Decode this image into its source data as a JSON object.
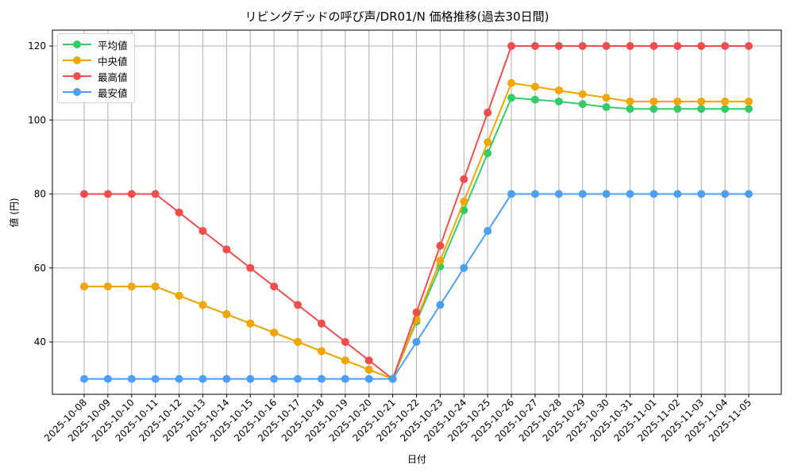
{
  "chart_data": {
    "type": "line",
    "title": "リビングデッドの呼び声/DR01/N 価格推移(過去30日間)",
    "xlabel": "日付",
    "ylabel": "値 (円)",
    "ylim": [
      25,
      125
    ],
    "yticks": [
      40,
      60,
      80,
      100,
      120
    ],
    "grid": true,
    "legend_position": "upper left",
    "x": [
      "2025-10-08",
      "2025-10-09",
      "2025-10-10",
      "2025-10-11",
      "2025-10-12",
      "2025-10-13",
      "2025-10-14",
      "2025-10-15",
      "2025-10-16",
      "2025-10-17",
      "2025-10-18",
      "2025-10-19",
      "2025-10-20",
      "2025-10-21",
      "2025-10-22",
      "2025-10-23",
      "2025-10-24",
      "2025-10-25",
      "2025-10-26",
      "2025-10-27",
      "2025-10-28",
      "2025-10-29",
      "2025-10-30",
      "2025-10-31",
      "2025-11-01",
      "2025-11-02",
      "2025-11-03",
      "2025-11-04",
      "2025-11-05"
    ],
    "series": [
      {
        "name": "平均値",
        "color": "#33cc66",
        "values": [
          55,
          55,
          55,
          55,
          52.5,
          50,
          47.5,
          45,
          42.5,
          40,
          37.5,
          35,
          32.5,
          30,
          45.5,
          60.4,
          75.6,
          91,
          106,
          105.5,
          105,
          104.3,
          103.5,
          103,
          103,
          103,
          103,
          103,
          103
        ]
      },
      {
        "name": "中央値",
        "color": "#f5a500",
        "values": [
          55,
          55,
          55,
          55,
          52.5,
          50,
          47.5,
          45,
          42.5,
          40,
          37.5,
          35,
          32.5,
          30,
          46,
          62,
          78,
          94,
          110,
          109,
          108,
          107,
          106,
          105,
          105,
          105,
          105,
          105,
          105
        ]
      },
      {
        "name": "最高値",
        "color": "#f24d4d",
        "values": [
          80,
          80,
          80,
          80,
          75,
          70,
          65,
          60,
          55,
          50,
          45,
          40,
          35,
          30,
          48,
          66,
          84,
          102,
          120,
          120,
          120,
          120,
          120,
          120,
          120,
          120,
          120,
          120,
          120
        ]
      },
      {
        "name": "最安値",
        "color": "#4d9ef5",
        "values": [
          30,
          30,
          30,
          30,
          30,
          30,
          30,
          30,
          30,
          30,
          30,
          30,
          30,
          30,
          40,
          50,
          60,
          70,
          80,
          80,
          80,
          80,
          80,
          80,
          80,
          80,
          80,
          80,
          80
        ]
      }
    ]
  }
}
